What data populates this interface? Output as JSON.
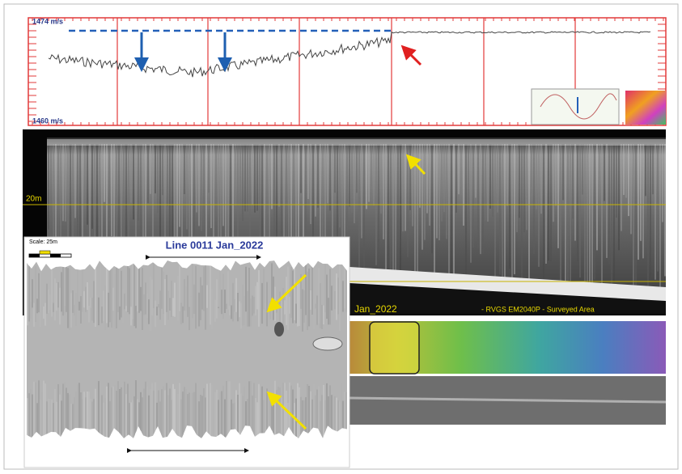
{
  "velocity_panel": {
    "max_label": "1474 m/s",
    "min_label": "1460 m/s"
  },
  "water_column": {
    "depth_label": "20m",
    "line_label": "Jan_2022",
    "survey_label": "- RVGS EM2040P - Surveyed Area"
  },
  "inset": {
    "scale_label": "Scale: 25m",
    "title": "Line 0011 Jan_2022"
  }
}
